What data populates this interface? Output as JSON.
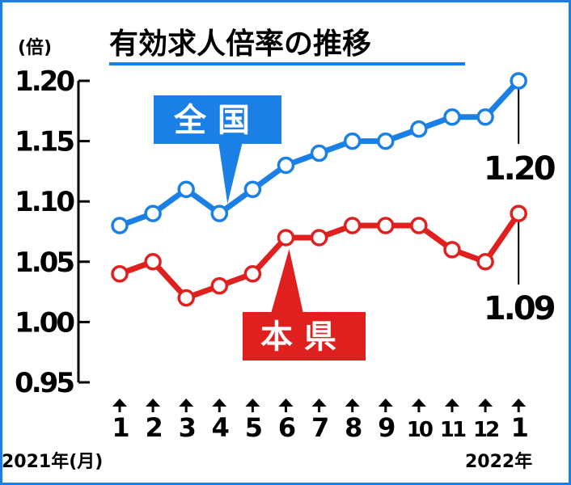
{
  "chart_data": {
    "type": "line",
    "title": "有効求人倍率の推移",
    "ylabel": "(倍)",
    "ylim": [
      0.95,
      1.2
    ],
    "yticks": [
      "1.20",
      "1.15",
      "1.10",
      "1.05",
      "1.00",
      "0.95"
    ],
    "categories": [
      "1",
      "2",
      "3",
      "4",
      "5",
      "6",
      "7",
      "8",
      "9",
      "10",
      "11",
      "12",
      "1"
    ],
    "xlabel_start": "2021年(月)",
    "xlabel_end": "2022年",
    "series": [
      {
        "name": "全国",
        "color": "#1a80e6",
        "values": [
          1.08,
          1.09,
          1.11,
          1.09,
          1.11,
          1.13,
          1.14,
          1.15,
          1.15,
          1.16,
          1.17,
          1.17,
          1.2
        ],
        "end_label": "1.20"
      },
      {
        "name": "本県",
        "color": "#e0201e",
        "values": [
          1.04,
          1.05,
          1.02,
          1.03,
          1.04,
          1.07,
          1.07,
          1.08,
          1.08,
          1.08,
          1.06,
          1.05,
          1.09
        ],
        "end_label": "1.09"
      }
    ],
    "grid": false,
    "frame_color": "#1a80e6"
  }
}
